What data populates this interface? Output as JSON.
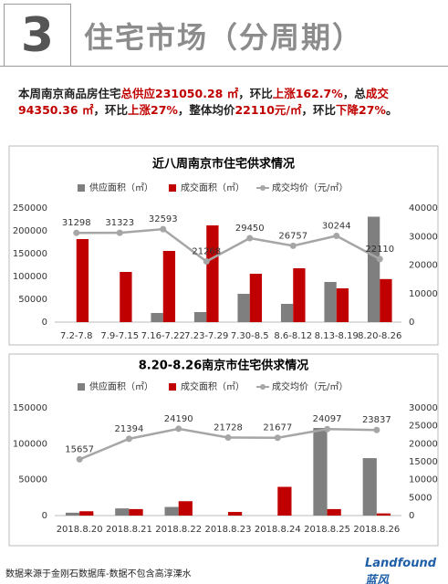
{
  "header": {
    "number": "3",
    "title": "住宅市场（分周期）"
  },
  "summary": [
    {
      "text": "本周南京商品房住宅",
      "color": "#222222"
    },
    {
      "text": "总供应231050.28 ㎡",
      "color": "#c00000"
    },
    {
      "text": "，环比",
      "color": "#222222"
    },
    {
      "text": "上涨162.7%",
      "color": "#c00000"
    },
    {
      "text": "，总",
      "color": "#222222"
    },
    {
      "text": "成交94350.36 ㎡",
      "color": "#c00000"
    },
    {
      "text": "，环比",
      "color": "#222222"
    },
    {
      "text": "上涨27%",
      "color": "#c00000"
    },
    {
      "text": "，整体均价",
      "color": "#222222"
    },
    {
      "text": "22110元/㎡",
      "color": "#c00000"
    },
    {
      "text": "，环比",
      "color": "#222222"
    },
    {
      "text": "下降27%",
      "color": "#c00000"
    },
    {
      "text": "。",
      "color": "#222222"
    }
  ],
  "chart_data": [
    {
      "type": "bar",
      "title": "近八周南京市住宅供求情况",
      "categories": [
        "7.2-7.8",
        "7.9-7.15",
        "7.16-7.22",
        "7.23-7.29",
        "7.30-8.5",
        "8.6-8.12",
        "8.13-8.19",
        "8.20-8.26"
      ],
      "series": [
        {
          "name": "供应面积（㎡）",
          "color": "#7f7f7f",
          "values": [
            0,
            0,
            20000,
            22000,
            62000,
            40000,
            88000,
            231050.28
          ]
        },
        {
          "name": "成交面积（㎡）",
          "color": "#c00000",
          "values": [
            182000,
            110000,
            156000,
            212000,
            106000,
            118000,
            74000,
            94350.36
          ]
        },
        {
          "name": "成交均价（元/㎡）",
          "color": "#a6a6a6",
          "type": "line",
          "axis": "y2",
          "values": [
            31298,
            31323,
            32593,
            21268,
            29450,
            26757,
            30244,
            22110
          ]
        }
      ],
      "ylim": [
        0,
        250000
      ],
      "yticks": [
        0,
        50000,
        100000,
        150000,
        200000,
        250000
      ],
      "y2lim": [
        0,
        40000
      ],
      "y2ticks": [
        0,
        10000,
        20000,
        30000,
        40000
      ]
    },
    {
      "type": "bar",
      "title": "8.20-8.26南京市住宅供求情况",
      "categories": [
        "2018.8.20",
        "2018.8.21",
        "2018.8.22",
        "2018.8.23",
        "2018.8.24",
        "2018.8.25",
        "2018.8.26"
      ],
      "series": [
        {
          "name": "供应面积（㎡）",
          "color": "#7f7f7f",
          "values": [
            4000,
            10000,
            12000,
            0,
            0,
            122000,
            80000
          ]
        },
        {
          "name": "成交面积（㎡）",
          "color": "#c00000",
          "values": [
            6000,
            9000,
            20000,
            5000,
            40000,
            9000,
            3000
          ]
        },
        {
          "name": "成交均价（元/㎡）",
          "color": "#a6a6a6",
          "type": "line",
          "axis": "y2",
          "values": [
            15657,
            21394,
            24190,
            21728,
            21677,
            24097,
            23837
          ]
        }
      ],
      "ylim": [
        0,
        150000
      ],
      "yticks": [
        0,
        50000,
        100000,
        150000
      ],
      "y2lim": [
        0,
        30000
      ],
      "y2ticks": [
        0,
        5000,
        10000,
        15000,
        20000,
        25000,
        30000
      ]
    }
  ],
  "footer": {
    "source": "数据来源于金刚石数据库-数据不包含高淳溧水",
    "logo": "Landfound蓝风"
  }
}
